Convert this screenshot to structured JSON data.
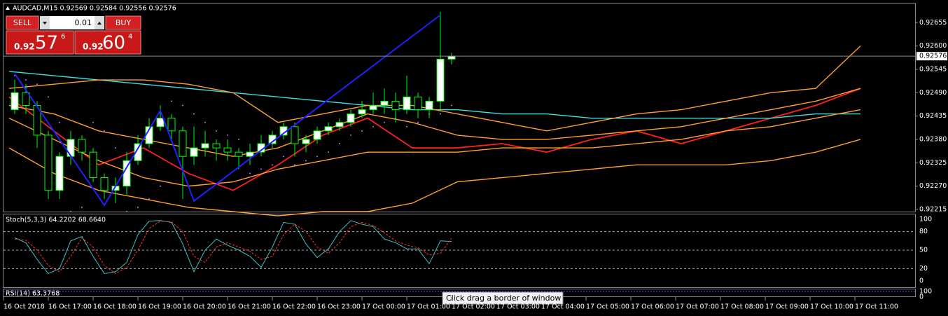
{
  "header": {
    "title": "AUDCAD,M15  0.92569 0.92584 0.92556 0.92576"
  },
  "trade_panel": {
    "sell": "SELL",
    "buy": "BUY",
    "lot": "0.01",
    "sell_price": {
      "prefix": "0.92",
      "main": "57",
      "sup": "6"
    },
    "buy_price": {
      "prefix": "0.92",
      "main": "60",
      "sup": "4"
    }
  },
  "tooltip": "Click  drag a border of window",
  "chart": {
    "type": "candlestick",
    "ylim": [
      0.9221,
      0.927
    ],
    "yticks": [
      {
        "value": 0.92655,
        "label": "0.92655"
      },
      {
        "value": 0.926,
        "label": "0.92600"
      },
      {
        "value": 0.92545,
        "label": "0.92545"
      },
      {
        "value": 0.9249,
        "label": "0.92490"
      },
      {
        "value": 0.92435,
        "label": "0.92435"
      },
      {
        "value": 0.9238,
        "label": "0.92380"
      },
      {
        "value": 0.92325,
        "label": "0.92325"
      },
      {
        "value": 0.9227,
        "label": "0.92270"
      },
      {
        "value": 0.92215,
        "label": "0.92215"
      }
    ],
    "current_price": {
      "value": 0.92576,
      "label": "0.92576"
    },
    "time_labels": [
      "16 Oct 2018",
      "16 Oct 17:00",
      "16 Oct 18:00",
      "16 Oct 19:00",
      "16 Oct 20:00",
      "16 Oct 21:00",
      "16 Oct 22:00",
      "16 Oct 23:00",
      "17 Oct 00:00",
      "17 Oct 01:00",
      "17 Oct 02:00",
      "17 Oct 03:00",
      "17 Oct 04:00",
      "17 Oct 05:00",
      "17 Oct 06:00",
      "17 Oct 07:00",
      "17 Oct 08:00",
      "17 Oct 09:00",
      "17 Oct 10:00",
      "17 Oct 11:00"
    ],
    "open": [
      0.9245,
      0.9249,
      0.9246,
      0.9239,
      0.9226,
      0.9234,
      0.9238,
      0.9235,
      0.9229,
      0.9226,
      0.9227,
      0.9233,
      0.9237,
      0.9241,
      0.9243,
      0.924,
      0.9234,
      0.9236,
      0.9237,
      0.9236,
      0.9235,
      0.9234,
      0.9235,
      0.9237,
      0.9239,
      0.9241,
      0.9237,
      0.9238,
      0.924,
      0.9241,
      0.9242,
      0.9244,
      0.9245,
      0.9246,
      0.9247,
      0.9245,
      0.9248,
      0.9245,
      0.9247,
      0.92569
    ],
    "high": [
      0.9252,
      0.9251,
      0.9247,
      0.924,
      0.9235,
      0.924,
      0.9239,
      0.9236,
      0.923,
      0.9229,
      0.9235,
      0.9239,
      0.9243,
      0.9246,
      0.9244,
      0.9241,
      0.9241,
      0.924,
      0.9238,
      0.9238,
      0.9236,
      0.9237,
      0.9239,
      0.924,
      0.9242,
      0.9242,
      0.9239,
      0.9241,
      0.9242,
      0.9243,
      0.9245,
      0.9247,
      0.9249,
      0.925,
      0.9249,
      0.9253,
      0.9249,
      0.9248,
      0.9268,
      0.92584
    ],
    "low": [
      0.9244,
      0.9244,
      0.9236,
      0.9224,
      0.9224,
      0.9232,
      0.9233,
      0.9228,
      0.9224,
      0.9223,
      0.9225,
      0.9232,
      0.9236,
      0.924,
      0.9238,
      0.9224,
      0.9232,
      0.9234,
      0.9233,
      0.9233,
      0.9231,
      0.9232,
      0.9234,
      0.9236,
      0.9238,
      0.9234,
      0.9235,
      0.9237,
      0.9239,
      0.924,
      0.9241,
      0.9243,
      0.9244,
      0.9244,
      0.9242,
      0.9244,
      0.9243,
      0.9243,
      0.9245,
      0.92556
    ],
    "close": [
      0.9249,
      0.9246,
      0.9239,
      0.9226,
      0.9234,
      0.9238,
      0.9235,
      0.9229,
      0.9226,
      0.9227,
      0.9233,
      0.9237,
      0.9241,
      0.9243,
      0.924,
      0.9234,
      0.9236,
      0.9237,
      0.9236,
      0.9235,
      0.9234,
      0.9235,
      0.9237,
      0.9239,
      0.9241,
      0.9237,
      0.9238,
      0.924,
      0.9241,
      0.9242,
      0.9244,
      0.9245,
      0.9246,
      0.9247,
      0.9245,
      0.9248,
      0.9245,
      0.9247,
      0.92569,
      0.92576
    ],
    "bull_color": "#ffffff",
    "bear_color": "#000000",
    "wick_color": "#00ff00",
    "sar": {
      "color": "#cc66ff",
      "values": [
        0.9253,
        0.9252,
        0.9251,
        0.9248,
        0.9242,
        0.9221,
        0.9222,
        0.9242,
        0.924,
        0.9236,
        0.9221,
        0.9222,
        0.9224,
        0.9227,
        0.9247,
        0.9246,
        0.9244,
        0.9242,
        0.924,
        0.9239,
        0.9238,
        0.923,
        0.9231,
        0.9232,
        0.9234,
        0.9232,
        0.9233,
        0.9234,
        0.9235,
        0.9237,
        0.9239,
        0.924,
        0.9241,
        0.9242,
        0.9243,
        0.9241,
        0.9242,
        0.9244,
        0.9244,
        0.9246
      ]
    },
    "lines": [
      {
        "color": "#ff2020",
        "values": [
          0.9248,
          0.924,
          0.9232,
          0.9236,
          0.923,
          0.9226,
          0.9232,
          0.9239,
          0.9243,
          0.9236,
          0.9236,
          0.9237,
          0.9235,
          0.9238,
          0.924,
          0.9237,
          0.924,
          0.9243,
          0.9246,
          0.925
        ]
      },
      {
        "color": "#40e0e0",
        "values": [
          0.9254,
          0.9253,
          0.9252,
          0.9251,
          0.925,
          0.9249,
          0.9248,
          0.9247,
          0.9246,
          0.9245,
          0.9245,
          0.9244,
          0.9244,
          0.9243,
          0.9243,
          0.9243,
          0.9243,
          0.9243,
          0.9244,
          0.9244
        ]
      },
      {
        "color": "#ffa030",
        "values": [
          0.925,
          0.9251,
          0.9252,
          0.9252,
          0.9251,
          0.9249,
          0.9242,
          0.9244,
          0.9246,
          0.9246,
          0.9244,
          0.9242,
          0.924,
          0.9242,
          0.9244,
          0.9245,
          0.9247,
          0.9249,
          0.925,
          0.926
        ]
      },
      {
        "color": "#ffa030",
        "values": [
          0.9236,
          0.923,
          0.9226,
          0.9224,
          0.9222,
          0.9221,
          0.922,
          0.9221,
          0.9221,
          0.9223,
          0.9228,
          0.9229,
          0.923,
          0.9231,
          0.9232,
          0.9232,
          0.9232,
          0.9233,
          0.9235,
          0.9238
        ]
      },
      {
        "color": "#ffa030",
        "values": [
          0.9246,
          0.9244,
          0.924,
          0.9238,
          0.9236,
          0.9234,
          0.9236,
          0.924,
          0.9244,
          0.9242,
          0.9239,
          0.9238,
          0.9238,
          0.9239,
          0.924,
          0.9241,
          0.9243,
          0.9245,
          0.9247,
          0.925
        ]
      },
      {
        "color": "#ffa030",
        "values": [
          0.9243,
          0.9238,
          0.9233,
          0.9229,
          0.9227,
          0.9228,
          0.9231,
          0.9233,
          0.9235,
          0.9235,
          0.9235,
          0.9236,
          0.9236,
          0.9236,
          0.9237,
          0.9238,
          0.924,
          0.9241,
          0.9243,
          0.9245
        ]
      }
    ],
    "zigzag": {
      "color": "#2020ff",
      "candles": [
        0,
        8,
        13,
        16,
        38
      ],
      "prices": [
        0.92535,
        0.92225,
        0.92448,
        0.92235,
        0.92673
      ]
    }
  },
  "stoch": {
    "label": "Stoch(5,3,3) 64.2202 68.6640",
    "ylim": [
      0,
      100
    ],
    "yticks": [
      100,
      80,
      50,
      20,
      0
    ],
    "levels": [
      80,
      50,
      20
    ],
    "series": [
      {
        "color": "#40c0c0",
        "values": [
          70,
          62,
          35,
          12,
          20,
          65,
          72,
          40,
          12,
          15,
          30,
          75,
          97,
          98,
          95,
          60,
          15,
          50,
          68,
          58,
          50,
          40,
          22,
          55,
          95,
          92,
          60,
          38,
          52,
          80,
          98,
          92,
          88,
          68,
          62,
          52,
          52,
          28,
          65,
          64
        ]
      },
      {
        "color": "#ff3030",
        "values": [
          68,
          66,
          50,
          25,
          15,
          40,
          70,
          55,
          25,
          12,
          22,
          50,
          85,
          97,
          96,
          80,
          40,
          30,
          55,
          62,
          55,
          48,
          35,
          40,
          75,
          92,
          80,
          55,
          45,
          62,
          88,
          95,
          90,
          78,
          65,
          58,
          54,
          42,
          45,
          69
        ]
      }
    ]
  },
  "rsi": {
    "label": "RSI(14) 63.3768",
    "yticks": [
      100,
      0
    ]
  }
}
